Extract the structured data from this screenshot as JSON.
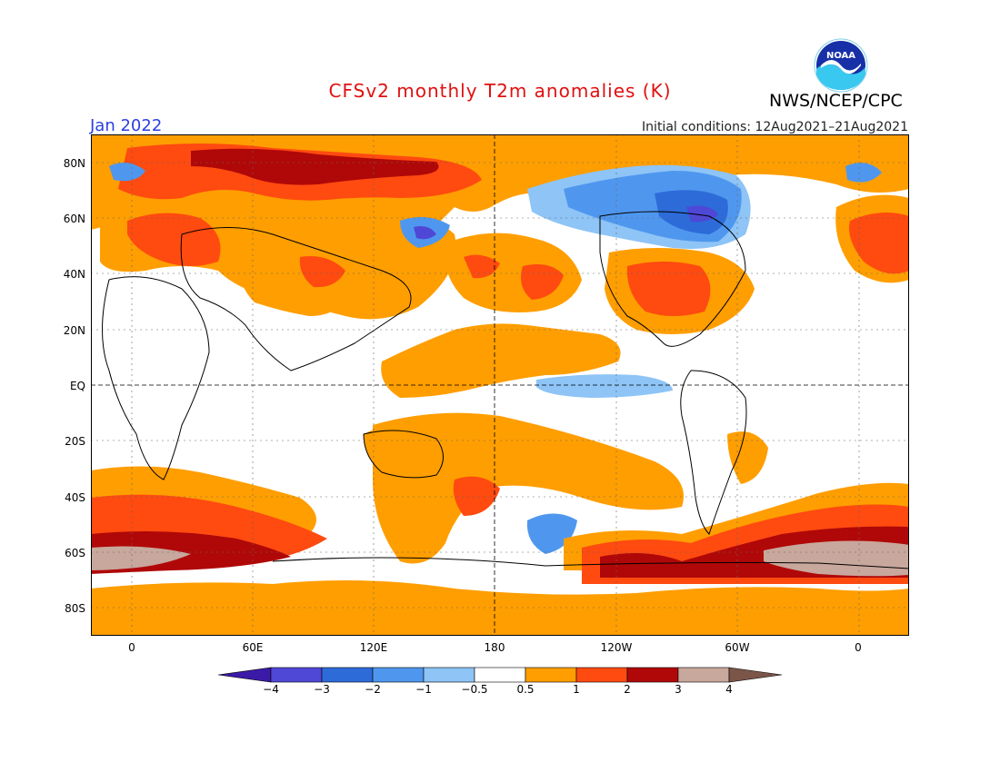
{
  "title": "CFSv2 monthly T2m anomalies (K)",
  "agency": "NWS/NCEP/CPC",
  "logo": {
    "icon": "noaa-logo",
    "text": "NOAA"
  },
  "period": "Jan 2022",
  "initial_conditions": "Initial conditions: 12Aug2021–21Aug2021",
  "y_labels": [
    "80N",
    "60N",
    "40N",
    "20N",
    "EQ",
    "20S",
    "40S",
    "60S",
    "80S"
  ],
  "x_labels": [
    "0",
    "60E",
    "120E",
    "180",
    "120W",
    "60W",
    "0"
  ],
  "colorbar": {
    "labels": [
      "−4",
      "−3",
      "−2",
      "−1",
      "−0.5",
      "0.5",
      "1",
      "2",
      "3",
      "4"
    ],
    "colors": [
      "#3c1aa8",
      "#4f47d6",
      "#2d6bd8",
      "#4f97ee",
      "#8ec4f6",
      "#ffffff",
      "#ff9e00",
      "#ff4a10",
      "#b00808",
      "#c8a79c",
      "#7b5548"
    ]
  },
  "colors": {
    "orange": "#ff9e00",
    "red": "#ff4a10",
    "darkred": "#b00808",
    "tan": "#c8a79c",
    "lightblue": "#8ec4f6",
    "blue": "#4f97ee",
    "midblue": "#2d6bd8",
    "darkblue": "#4f47d6"
  }
}
